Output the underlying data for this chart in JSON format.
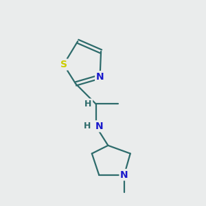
{
  "background_color": "#eaecec",
  "bond_color": "#2d6b6b",
  "atom_colors": {
    "N": "#1a1acc",
    "S": "#cccc00",
    "H_color": "#2d6b6b"
  },
  "figsize": [
    3.0,
    3.0
  ],
  "dpi": 100,
  "xlim": [
    0,
    10
  ],
  "ylim": [
    0,
    10
  ]
}
